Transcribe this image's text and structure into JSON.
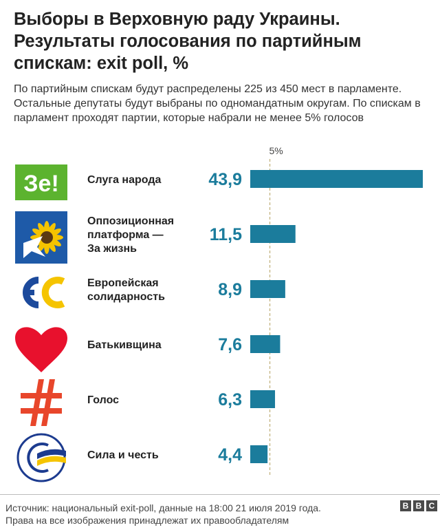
{
  "title": "Выборы в Верховную раду Украины. Результаты голосования по партийным спискам: exit poll, %",
  "subtitle": "По партийным спискам будут распределены 225 из 450 мест в парламенте. Остальные депутаты будут выбраны по одномандатным округам. По спискам в парламент проходят партии, которые набрали не менее 5% голосов",
  "source": {
    "line1": "Источник: национальный exit-poll, данные на 18:00 21 июля 2019 года.",
    "line2": "Права на все изображения принадлежат их правообладателям"
  },
  "brand": {
    "letters": [
      "B",
      "B",
      "C"
    ]
  },
  "logos": {
    "sluga": {
      "name": "ze-logo-icon",
      "text": "Зе!",
      "color": "#5cb32f"
    },
    "opzzh": {
      "name": "sunflower-dove-logo-icon",
      "colors": [
        "#1e5aa8",
        "#f5c400"
      ]
    },
    "es": {
      "name": "es-logo-icon",
      "text": "ЄС",
      "colors": [
        "#1c4a9c",
        "#f5c400"
      ]
    },
    "batkivshchyna": {
      "name": "heart-logo-icon",
      "color": "#e8112d"
    },
    "golos": {
      "name": "golos-logo-icon",
      "color": "#e8462b"
    },
    "syla": {
      "name": "syla-i-chest-logo-icon",
      "colors": [
        "#1c3b8f",
        "#f5c400"
      ]
    }
  },
  "chart_data": {
    "type": "bar",
    "orientation": "horizontal",
    "categories": [
      "Слуга народа",
      "Оппозиционная платформа — За жизнь",
      "Европейская солидарность",
      "Батьківщина",
      "Голос",
      "Сила и честь"
    ],
    "category_lines": [
      [
        "Слуга народа"
      ],
      [
        "Оппозиционная",
        "платформа —",
        "За жизнь"
      ],
      [
        "Европейская",
        "солидарность"
      ],
      [
        "Батькивщина"
      ],
      [
        "Голос"
      ],
      [
        "Сила и честь"
      ]
    ],
    "values": [
      43.9,
      11.5,
      8.9,
      7.6,
      6.3,
      4.4
    ],
    "value_labels": [
      "43,9",
      "11,5",
      "8,9",
      "7,6",
      "6,3",
      "4,4"
    ],
    "bar_color": "#1b7c9c",
    "value_label_color": "#1b7c9c",
    "reference_line": {
      "value": 5,
      "label": "5%",
      "style": "dashed",
      "color": "#b5a060"
    },
    "xlim": [
      0,
      43.9
    ],
    "grid": false,
    "legend": "none"
  }
}
